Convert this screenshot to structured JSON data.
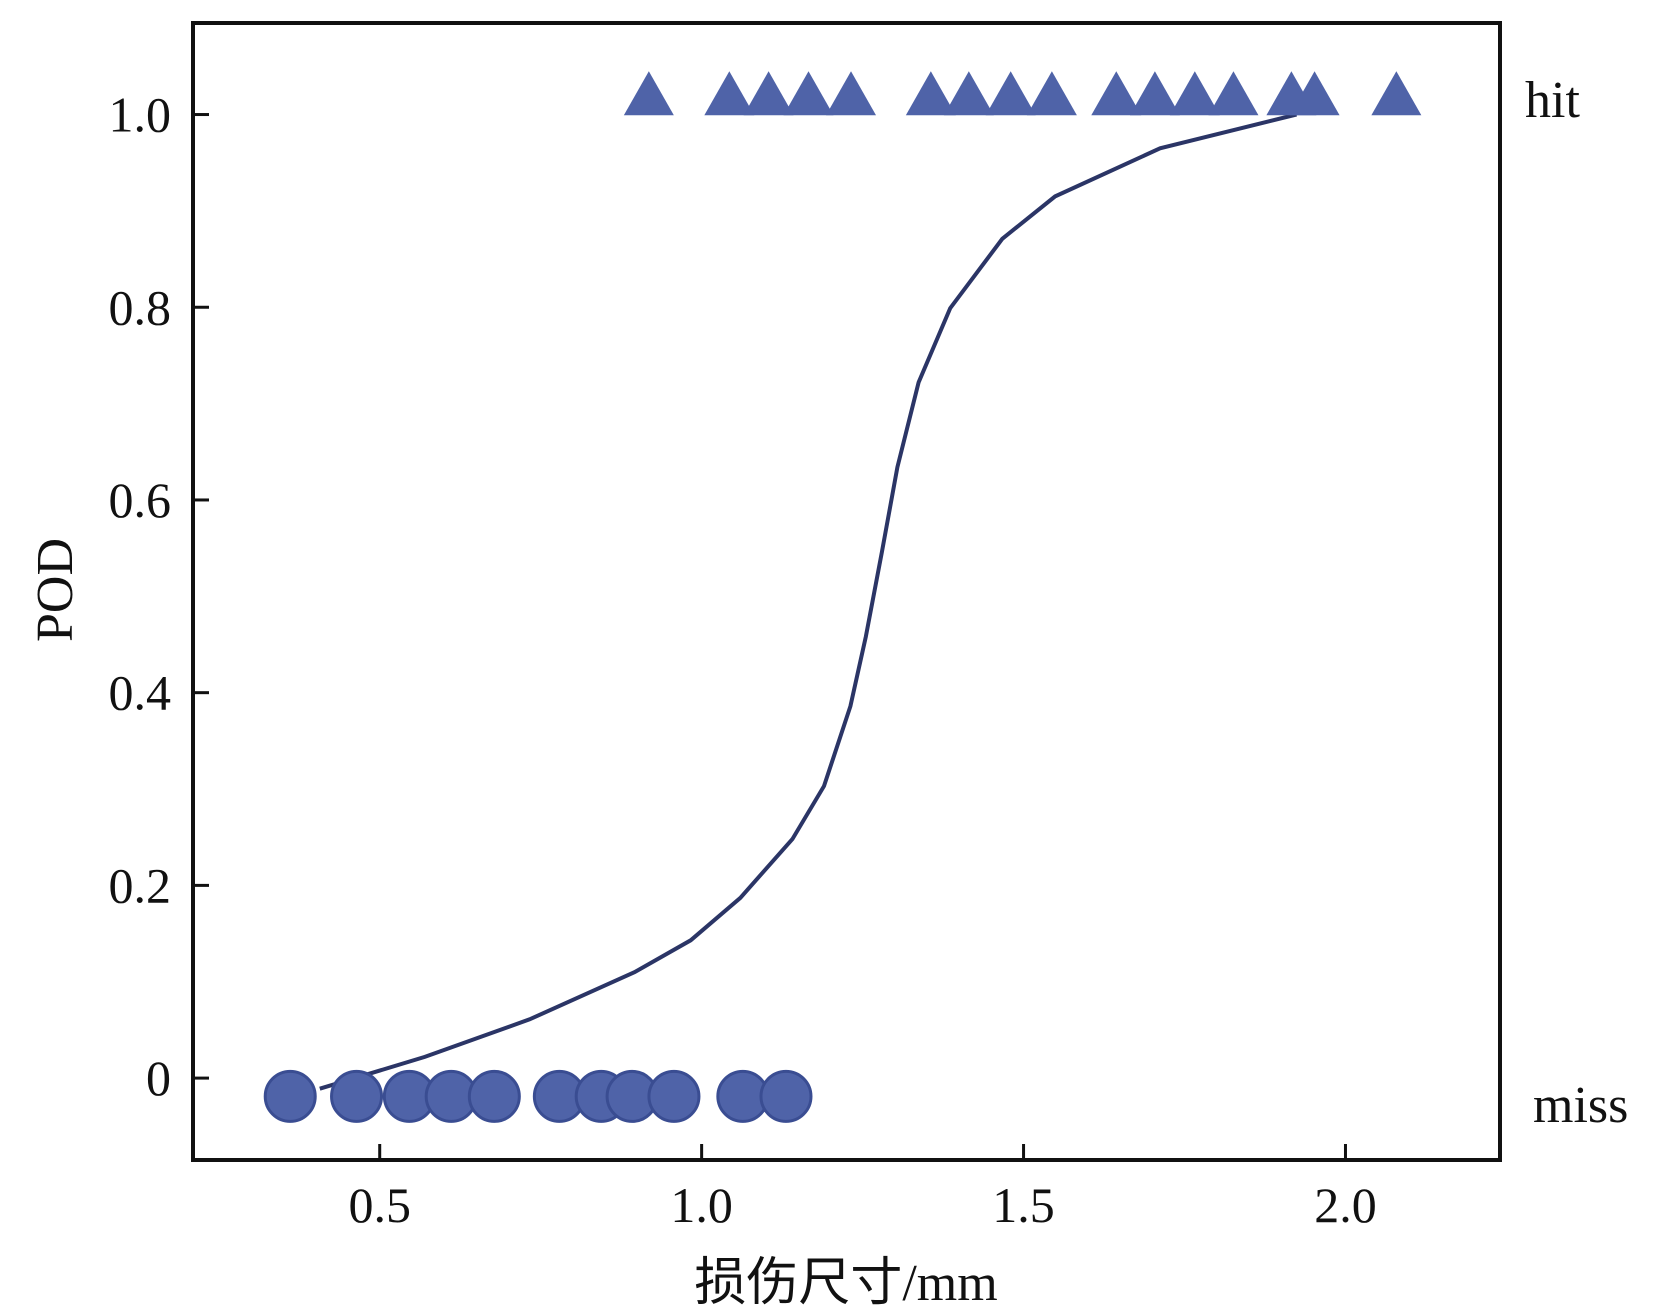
{
  "chart_data": {
    "type": "scatter",
    "title": "",
    "xlabel": "损伤尺寸/mm",
    "ylabel": "POD",
    "xlim": [
      0.21,
      2.24
    ],
    "ylim": [
      -0.085,
      1.095
    ],
    "xticks": [
      0.5,
      1.0,
      1.5,
      2.0
    ],
    "xtick_labels": [
      "0.5",
      "1.0",
      "1.5",
      "2.0"
    ],
    "yticks": [
      0,
      0.2,
      0.4,
      0.6,
      0.8,
      1.0
    ],
    "ytick_labels": [
      "0",
      "0.2",
      "0.4",
      "0.6",
      "0.8",
      "1.0"
    ],
    "grid": false,
    "right_labels": {
      "hit": "hit",
      "miss": "miss"
    },
    "colors": {
      "marker": "#4f63a8",
      "marker_edge": "#3a4d92",
      "curve": "#2b3566"
    },
    "series": [
      {
        "name": "hit",
        "marker": "triangle",
        "y": 1.02,
        "x": [
          0.918,
          1.043,
          1.104,
          1.166,
          1.232,
          1.356,
          1.415,
          1.48,
          1.544,
          1.644,
          1.704,
          1.766,
          1.826,
          1.916,
          1.952,
          2.079
        ]
      },
      {
        "name": "miss",
        "marker": "circle",
        "y": -0.019,
        "x": [
          0.361,
          0.464,
          0.546,
          0.611,
          0.678,
          0.779,
          0.844,
          0.892,
          0.957,
          1.064,
          1.131
        ]
      },
      {
        "name": "POD curve",
        "marker": "line",
        "x": [
          0.407,
          0.57,
          0.733,
          0.896,
          0.983,
          1.06,
          1.141,
          1.19,
          1.231,
          1.255,
          1.28,
          1.304,
          1.337,
          1.386,
          1.467,
          1.549,
          1.712,
          1.924
        ],
        "y": [
          -0.011,
          0.022,
          0.061,
          0.11,
          0.143,
          0.187,
          0.248,
          0.303,
          0.386,
          0.458,
          0.546,
          0.634,
          0.722,
          0.799,
          0.871,
          0.915,
          0.965,
          1.0
        ]
      }
    ]
  }
}
